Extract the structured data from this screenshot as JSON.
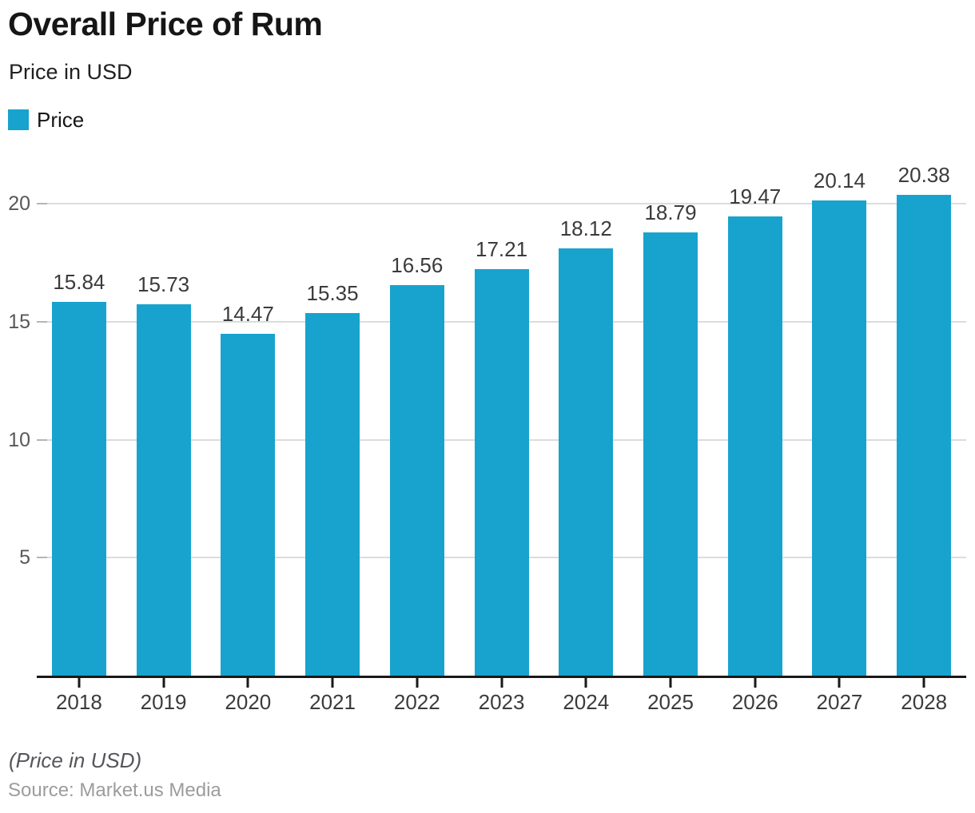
{
  "header": {
    "title": "Overall Price of Rum",
    "subtitle": "Price in USD"
  },
  "legend": {
    "label": "Price",
    "color": "#18a3ce"
  },
  "chart_data": {
    "type": "bar",
    "title": "Overall Price of Rum",
    "subtitle": "Price in USD",
    "categories": [
      "2018",
      "2019",
      "2020",
      "2021",
      "2022",
      "2023",
      "2024",
      "2025",
      "2026",
      "2027",
      "2028"
    ],
    "series": [
      {
        "name": "Price",
        "values": [
          15.84,
          15.73,
          14.47,
          15.35,
          16.56,
          17.21,
          18.12,
          18.79,
          19.47,
          20.14,
          20.38
        ]
      }
    ],
    "xlabel": "",
    "ylabel": "Price in USD",
    "yticks": [
      5,
      10,
      15,
      20
    ],
    "ylim": [
      0,
      22.2
    ],
    "grid": true,
    "value_labels": true,
    "value_label_decimals": 2,
    "legend_position": "top-left",
    "bar_color": "#18a3ce",
    "gridline_color": "#dcdcdc",
    "axis_color": "#191919"
  },
  "footer": {
    "note": "(Price in USD)",
    "source": "Source: Market.us Media"
  }
}
